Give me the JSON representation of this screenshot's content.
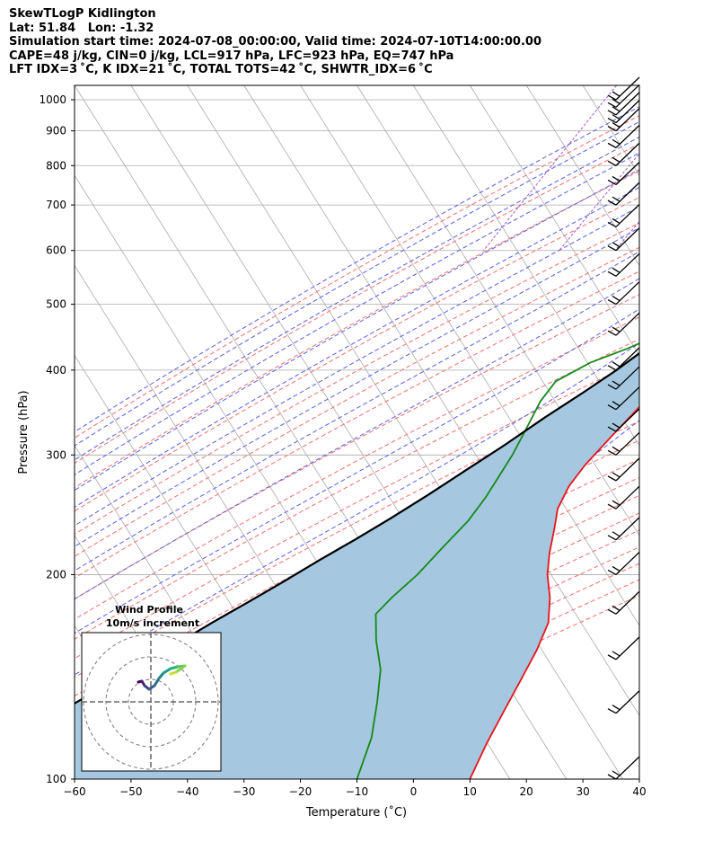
{
  "header": {
    "line1": "SkewTLogP Kidlington",
    "line2": "Lat: 51.84   Lon: -1.32",
    "line3": "Simulation start time: 2024-07-08_00:00:00, Valid time: 2024-07-10T14:00:00.00",
    "line4": "CAPE=48 j/kg, CIN=0 j/kg, LCL=917 hPa, LFC=923 hPa, EQ=747 hPa",
    "line5": "LFT IDX=3 ˚C, K IDX=21 ˚C, TOTAL TOTS=42 ˚C, SHWTR_IDX=6 ˚C"
  },
  "chart_data": {
    "type": "line",
    "title": "SkewTLogP Kidlington",
    "xlabel": "Temperature (˚C)",
    "ylabel": "Pressure (hPa)",
    "xlim": [
      -60,
      40
    ],
    "ylim": [
      1050,
      100
    ],
    "x_ticks": [
      "−60",
      "−50",
      "−40",
      "−30",
      "−20",
      "−10",
      "0",
      "10",
      "20",
      "30",
      "40"
    ],
    "y_ticks": [
      "100",
      "200",
      "300",
      "400",
      "500",
      "600",
      "700",
      "800",
      "900",
      "1000"
    ],
    "colors": {
      "temperature": "#e8141c",
      "dewpoint": "#138a18",
      "parcel": "#000000",
      "cape_fill": "#a5c7df",
      "dry_adiabat": "#f26e6e",
      "moist_adiabat": "#5a5ae8",
      "mixing_ratio": "#9c56c8",
      "isotherm": "#aaaaaa"
    },
    "series": [
      {
        "name": "Temperature",
        "points": [
          [
            20,
            1000
          ],
          [
            17,
            960
          ],
          [
            15,
            930
          ],
          [
            13,
            880
          ],
          [
            12.5,
            840
          ],
          [
            12.5,
            800
          ],
          [
            13,
            750
          ],
          [
            13,
            700
          ],
          [
            12,
            650
          ],
          [
            11,
            600
          ],
          [
            10,
            550
          ],
          [
            8,
            500
          ],
          [
            5,
            450
          ],
          [
            2,
            400
          ],
          [
            -1,
            360
          ],
          [
            -3,
            320
          ],
          [
            -4.5,
            290
          ],
          [
            -5,
            270
          ],
          [
            -4.5,
            250
          ],
          [
            -3,
            235
          ],
          [
            -1,
            215
          ],
          [
            1,
            200
          ],
          [
            4,
            185
          ],
          [
            6.5,
            170
          ],
          [
            7.5,
            155
          ],
          [
            8,
            140
          ],
          [
            8.5,
            125
          ],
          [
            9,
            113
          ],
          [
            10,
            100
          ]
        ]
      },
      {
        "name": "Dewpoint",
        "points": [
          [
            14.5,
            1000
          ],
          [
            15,
            960
          ],
          [
            15,
            930
          ],
          [
            14,
            910
          ],
          [
            12,
            880
          ],
          [
            11,
            840
          ],
          [
            9,
            800
          ],
          [
            8,
            770
          ],
          [
            6,
            740
          ],
          [
            4,
            700
          ],
          [
            3,
            650
          ],
          [
            0.5,
            600
          ],
          [
            -1,
            550
          ],
          [
            -3,
            500
          ],
          [
            -4,
            470
          ],
          [
            -6,
            450
          ],
          [
            -10,
            430
          ],
          [
            -15,
            410
          ],
          [
            -19,
            385
          ],
          [
            -19.5,
            360
          ],
          [
            -19,
            330
          ],
          [
            -18.5,
            300
          ],
          [
            -18.5,
            280
          ],
          [
            -18.5,
            260
          ],
          [
            -19,
            240
          ],
          [
            -20.5,
            220
          ],
          [
            -22,
            200
          ],
          [
            -24,
            185
          ],
          [
            -25,
            175
          ],
          [
            -22,
            160
          ],
          [
            -18,
            145
          ],
          [
            -15,
            130
          ],
          [
            -12,
            115
          ],
          [
            -10,
            100
          ]
        ]
      },
      {
        "name": "Parcel",
        "points": [
          [
            20,
            1000
          ],
          [
            17.2,
            960
          ],
          [
            15.1,
            932
          ],
          [
            14.4,
            917
          ],
          [
            12.6,
            850
          ],
          [
            11.2,
            800
          ],
          [
            9.5,
            750
          ],
          [
            8,
            700
          ],
          [
            6,
            650
          ],
          [
            4,
            600
          ],
          [
            1.5,
            550
          ],
          [
            -1.5,
            500
          ],
          [
            -5,
            450
          ],
          [
            -9.5,
            400
          ],
          [
            -13,
            370
          ],
          [
            -17,
            340
          ],
          [
            -21,
            310
          ],
          [
            -25,
            285
          ],
          [
            -29,
            262
          ],
          [
            -33,
            242
          ],
          [
            -37,
            225
          ],
          [
            -41,
            210
          ],
          [
            -45,
            195
          ],
          [
            -49,
            182
          ],
          [
            -53,
            170
          ],
          [
            -57,
            158
          ],
          [
            -61,
            147
          ],
          [
            -65,
            137
          ],
          [
            -69,
            128
          ],
          [
            -73,
            119
          ],
          [
            -77,
            111
          ],
          [
            -81,
            103
          ],
          [
            -83,
            100
          ]
        ]
      }
    ],
    "wind_barbs_pressure": [
      100,
      125,
      150,
      175,
      200,
      225,
      250,
      275,
      300,
      325,
      350,
      375,
      400,
      450,
      500,
      550,
      600,
      650,
      700,
      750,
      800,
      850,
      900,
      925,
      950,
      975,
      1000
    ],
    "hodograph": {
      "title": "Wind Profile",
      "subtitle": "10m/s increment"
    }
  }
}
